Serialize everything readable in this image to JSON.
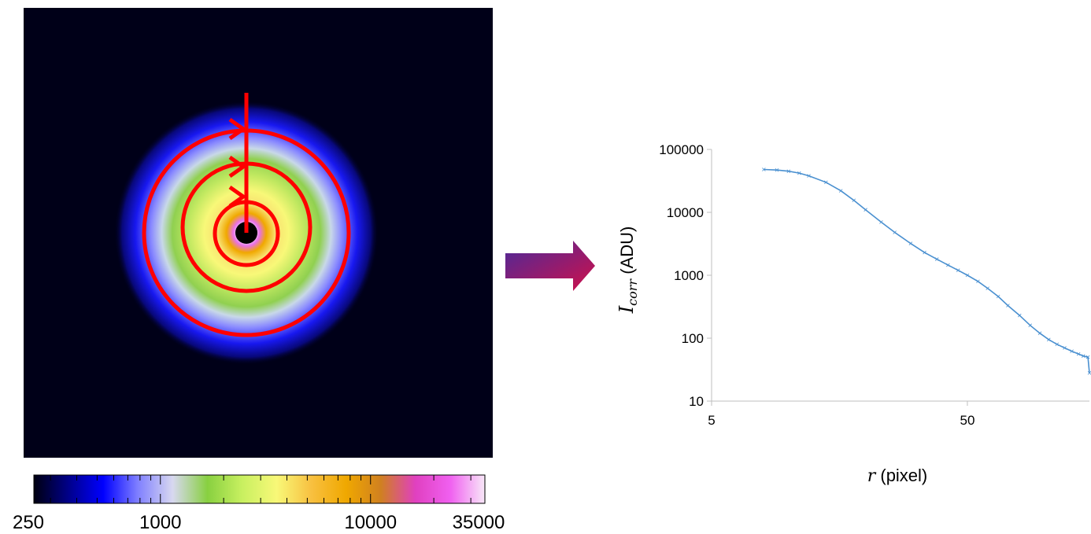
{
  "colorbar": {
    "tick_labels": [
      "250",
      "1000",
      "10000",
      "35000"
    ],
    "tick_values": [
      250,
      1000,
      10000,
      35000
    ],
    "range": [
      250,
      35000
    ],
    "stops": [
      "#000010",
      "#00008a",
      "#0000ff",
      "#8080ff",
      "#d8d8f0",
      "#88d040",
      "#c8f060",
      "#f8f878",
      "#f8c040",
      "#f0a800",
      "#d08020",
      "#e040c0",
      "#f060f0",
      "#f8e8f8"
    ]
  },
  "arrow": {
    "colors": [
      "#4a2a9a",
      "#d0104a"
    ]
  },
  "image_overlay": {
    "color": "#ff0000"
  },
  "chart_data": {
    "type": "line",
    "x_scale": "log",
    "y_scale": "log",
    "xlim": [
      5,
      150
    ],
    "ylim": [
      10,
      100000
    ],
    "x_ticks": [
      5,
      50
    ],
    "y_ticks": [
      10,
      100,
      1000,
      10000,
      100000
    ],
    "x_tick_labels": [
      "5",
      "50"
    ],
    "y_tick_labels": [
      "10",
      "100",
      "1000",
      "10000",
      "100000"
    ],
    "xlabel_var": "r",
    "xlabel_unit": " (pixel)",
    "ylabel_var": "I",
    "ylabel_sub": "corr",
    "ylabel_unit": " (ADU)",
    "series_color": "#4a90d0",
    "x": [
      8,
      9,
      10,
      11,
      12,
      14,
      16,
      18,
      20,
      23,
      26,
      30,
      34,
      38,
      42,
      46,
      50,
      55,
      60,
      66,
      72,
      80,
      88,
      96,
      104,
      112,
      120,
      128,
      136,
      142,
      148,
      150
    ],
    "y": [
      48000,
      47000,
      45000,
      42000,
      38000,
      30000,
      22000,
      15500,
      11000,
      7000,
      4800,
      3200,
      2300,
      1800,
      1450,
      1200,
      1000,
      800,
      620,
      460,
      330,
      230,
      160,
      120,
      95,
      80,
      70,
      62,
      56,
      52,
      50,
      28
    ]
  }
}
